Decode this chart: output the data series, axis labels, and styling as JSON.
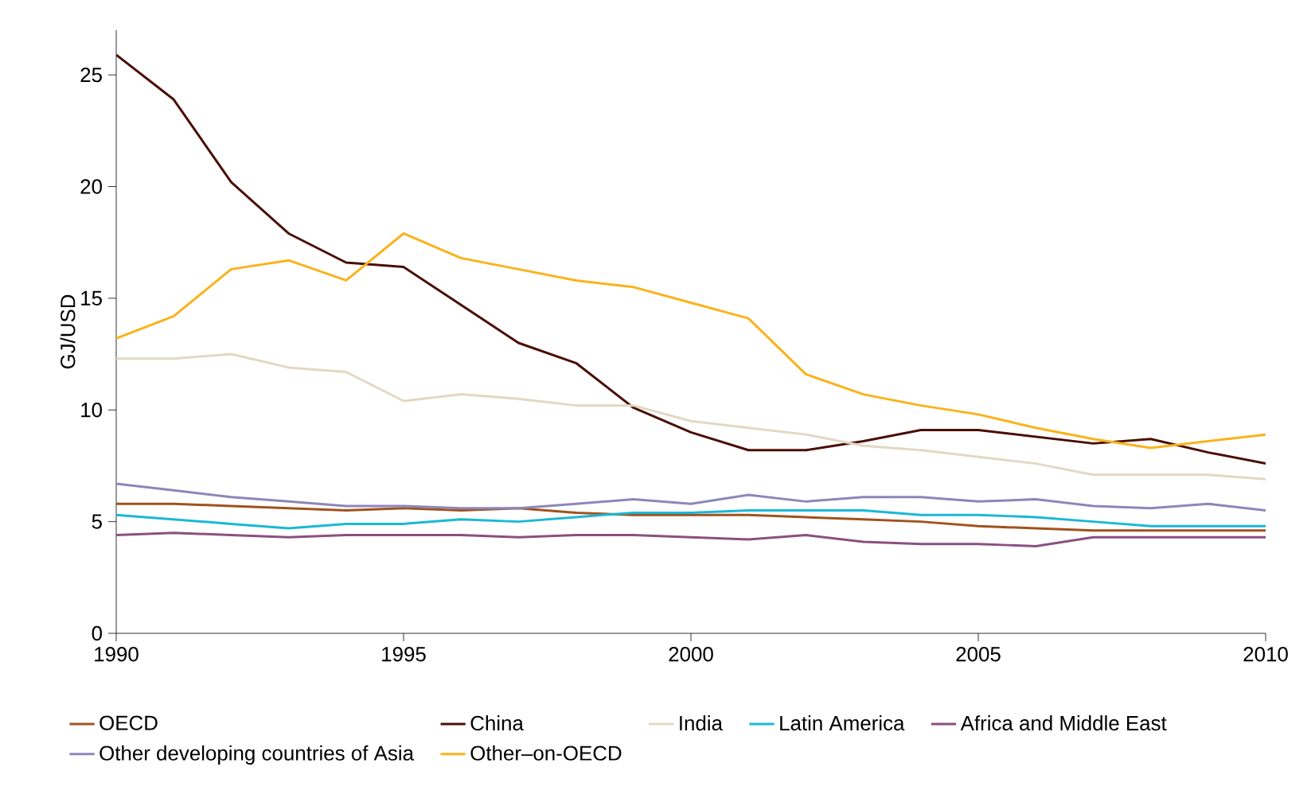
{
  "chart_data": {
    "type": "line",
    "ylabel": "GJ/USD",
    "x": [
      1990,
      1991,
      1992,
      1993,
      1994,
      1995,
      1996,
      1997,
      1998,
      1999,
      2000,
      2001,
      2002,
      2003,
      2004,
      2005,
      2006,
      2007,
      2008,
      2009,
      2010
    ],
    "series": [
      {
        "name": "OECD",
        "color": "#a0521d",
        "values": [
          5.8,
          5.8,
          5.7,
          5.6,
          5.5,
          5.6,
          5.5,
          5.6,
          5.4,
          5.3,
          5.3,
          5.3,
          5.2,
          5.1,
          5.0,
          4.8,
          4.7,
          4.6,
          4.6,
          4.6,
          4.6
        ]
      },
      {
        "name": "China",
        "color": "#4a0e05",
        "values": [
          25.9,
          23.9,
          20.2,
          17.9,
          16.6,
          16.4,
          14.7,
          13.0,
          12.1,
          10.1,
          9.0,
          8.2,
          8.2,
          8.6,
          9.1,
          9.1,
          8.8,
          8.5,
          8.7,
          8.1,
          7.6
        ]
      },
      {
        "name": "India",
        "color": "#e2d8c3",
        "values": [
          12.3,
          12.3,
          12.5,
          11.9,
          11.7,
          10.4,
          10.7,
          10.5,
          10.2,
          10.2,
          9.5,
          9.2,
          8.9,
          8.4,
          8.2,
          7.9,
          7.6,
          7.1,
          7.1,
          7.1,
          6.9
        ]
      },
      {
        "name": "Latin America",
        "color": "#1ab8d6",
        "values": [
          5.3,
          5.1,
          4.9,
          4.7,
          4.9,
          4.9,
          5.1,
          5.0,
          5.2,
          5.4,
          5.4,
          5.5,
          5.5,
          5.5,
          5.3,
          5.3,
          5.2,
          5.0,
          4.8,
          4.8,
          4.8
        ]
      },
      {
        "name": "Africa and Middle East",
        "color": "#8b4f82",
        "values": [
          4.4,
          4.5,
          4.4,
          4.3,
          4.4,
          4.4,
          4.4,
          4.3,
          4.4,
          4.4,
          4.3,
          4.2,
          4.4,
          4.1,
          4.0,
          4.0,
          3.9,
          4.3,
          4.3,
          4.3,
          4.3
        ]
      },
      {
        "name": "Other developing countries of Asia",
        "color": "#8d86ba",
        "values": [
          6.7,
          6.4,
          6.1,
          5.9,
          5.7,
          5.7,
          5.6,
          5.6,
          5.8,
          6.0,
          5.8,
          6.2,
          5.9,
          6.1,
          6.1,
          5.9,
          6.0,
          5.7,
          5.6,
          5.8,
          5.5
        ]
      },
      {
        "name": "Other–on-OECD",
        "color": "#fbb21b",
        "values": [
          13.2,
          14.2,
          16.3,
          16.7,
          15.8,
          17.9,
          16.8,
          16.3,
          15.8,
          15.5,
          14.8,
          14.1,
          11.6,
          10.7,
          10.2,
          9.8,
          9.2,
          8.7,
          8.3,
          8.6,
          8.9
        ]
      }
    ],
    "xlim": [
      1990,
      2010
    ],
    "xticks": [
      1990,
      1995,
      2000,
      2005,
      2010
    ],
    "ylim": [
      0,
      27
    ],
    "yticks": [
      0,
      5,
      10,
      15,
      20,
      25
    ],
    "grid": false,
    "legend": "bottom",
    "marker": "none",
    "line_style": "solid"
  }
}
